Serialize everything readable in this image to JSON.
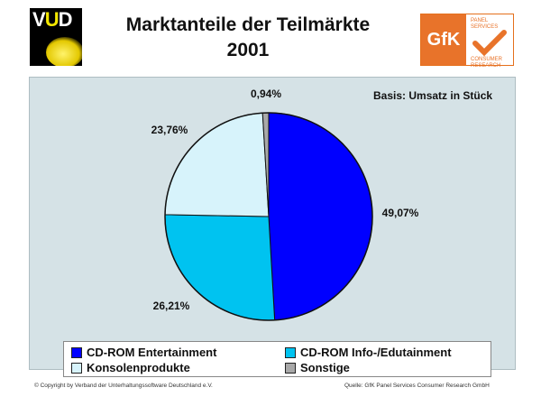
{
  "header": {
    "logo_left_text": "VUD",
    "title_line1": "Marktanteile der Teilmärkte",
    "title_line2": "2001",
    "logo_right_text": "GfK",
    "logo_right_small_top": "PANEL SERVICES",
    "logo_right_small_bottom": "CONSUMER RESEARCH"
  },
  "note": "Basis: Umsatz in Stück",
  "chart_data": {
    "type": "pie",
    "slices": [
      {
        "label": "CD-ROM Entertainment",
        "value": 49.07,
        "value_label": "49,07%",
        "color": "#0000ff"
      },
      {
        "label": "CD-ROM Info-/Edutainment",
        "value": 26.21,
        "value_label": "26,21%",
        "color": "#00c3f0"
      },
      {
        "label": "Konsolenprodukte",
        "value": 23.76,
        "value_label": "23,76%",
        "color": "#d7f3fb"
      },
      {
        "label": "Sonstige",
        "value": 0.94,
        "value_label": "0,94%",
        "color": "#a8a8a8"
      }
    ],
    "legend_placement": "bottom"
  },
  "footer": {
    "left": "© Copyright by Verband der Unterhaltungssoftware Deutschland e.V.",
    "right": "Quelle: GfK Panel Services Consumer Research GmbH"
  }
}
